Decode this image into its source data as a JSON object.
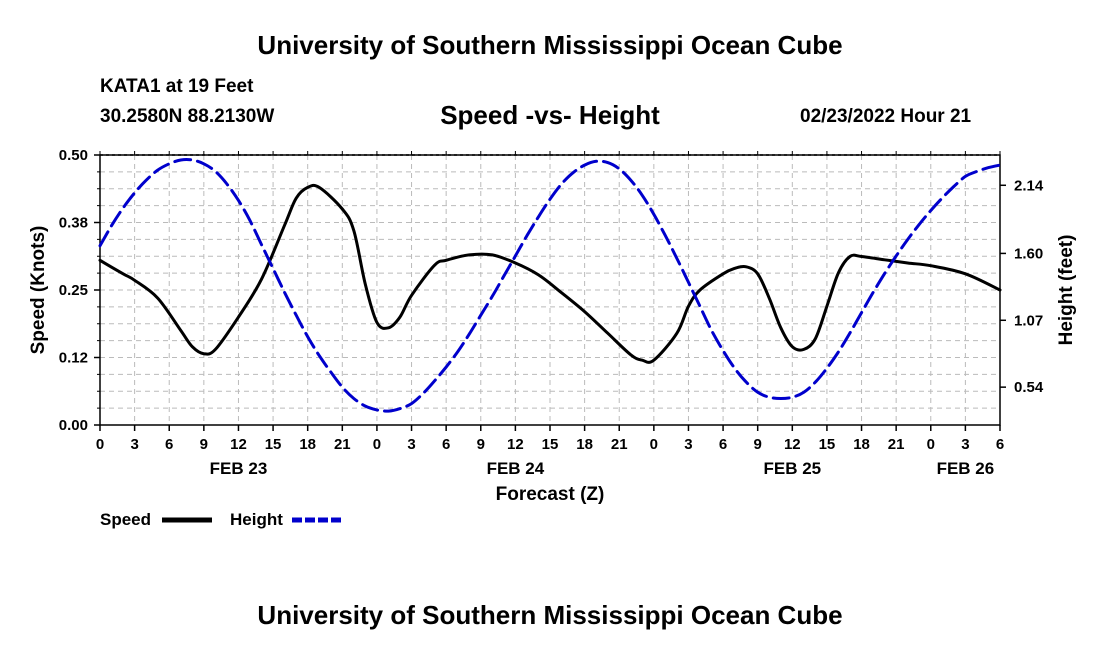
{
  "header": {
    "title": "University of Southern Mississippi Ocean Cube",
    "station": "KATA1 at 19 Feet",
    "coords": "30.2580N  88.2130W",
    "subtitle": "Speed -vs- Height",
    "timestamp": "02/23/2022 Hour 21"
  },
  "footer": {
    "title": "University of Southern Mississippi Ocean Cube"
  },
  "colors": {
    "speed": "#000000",
    "height": "#0000cc",
    "grid": "#bbbbbb"
  },
  "chart_data": {
    "type": "line",
    "title": "Speed -vs- Height",
    "xlabel": "Forecast (Z)",
    "ylabel": "Speed (Knots)",
    "y2label": "Height (feet)",
    "xlim": [
      0,
      78
    ],
    "ylim": [
      0,
      0.5
    ],
    "y2lim": [
      0.24,
      2.38
    ],
    "xticks": [
      0,
      3,
      6,
      9,
      12,
      15,
      18,
      21,
      24,
      27,
      30,
      33,
      36,
      39,
      42,
      45,
      48,
      51,
      54,
      57,
      60,
      63,
      66,
      69,
      72,
      75,
      78
    ],
    "xtick_labels": [
      "0",
      "3",
      "6",
      "9",
      "12",
      "15",
      "18",
      "21",
      "0",
      "3",
      "6",
      "9",
      "12",
      "15",
      "18",
      "21",
      "0",
      "3",
      "6",
      "9",
      "12",
      "15",
      "18",
      "21",
      "0",
      "3",
      "6"
    ],
    "yticks": [
      0,
      0.125,
      0.25,
      0.375,
      0.5
    ],
    "ytick_labels": [
      "0.00",
      "0.12",
      "0.25",
      "0.38",
      "0.50"
    ],
    "y2ticks": [
      0.54,
      1.07,
      1.6,
      2.14
    ],
    "y2tick_labels": [
      "0.54",
      "1.07",
      "1.60",
      "2.14"
    ],
    "date_labels": [
      {
        "label": "FEB 23",
        "x": 12
      },
      {
        "label": "FEB 24",
        "x": 36
      },
      {
        "label": "FEB 25",
        "x": 60
      },
      {
        "label": "FEB 26",
        "x": 75
      }
    ],
    "legend": [
      {
        "name": "Speed",
        "style": "solid"
      },
      {
        "name": "Height",
        "style": "dashed"
      }
    ],
    "series": [
      {
        "name": "Speed",
        "axis": "left",
        "x": [
          0,
          2,
          3,
          5,
          7,
          8,
          9,
          10,
          12,
          14,
          16,
          17,
          18,
          19,
          21,
          22,
          23,
          24,
          25,
          26,
          27,
          29,
          30,
          32,
          34,
          36,
          38,
          40,
          42,
          44,
          46,
          47,
          48,
          50,
          51,
          52,
          54,
          55,
          56,
          57,
          58,
          59,
          60,
          61,
          62,
          63,
          64,
          65,
          66,
          68,
          70,
          72,
          75,
          78
        ],
        "values": [
          0.305,
          0.28,
          0.268,
          0.235,
          0.175,
          0.145,
          0.132,
          0.14,
          0.2,
          0.27,
          0.37,
          0.42,
          0.44,
          0.44,
          0.4,
          0.36,
          0.26,
          0.19,
          0.18,
          0.2,
          0.24,
          0.296,
          0.305,
          0.315,
          0.315,
          0.3,
          0.278,
          0.245,
          0.21,
          0.17,
          0.13,
          0.12,
          0.12,
          0.17,
          0.22,
          0.25,
          0.28,
          0.29,
          0.293,
          0.28,
          0.235,
          0.18,
          0.145,
          0.14,
          0.16,
          0.22,
          0.282,
          0.312,
          0.312,
          0.306,
          0.3,
          0.295,
          0.28,
          0.25
        ]
      },
      {
        "name": "Height",
        "axis": "right",
        "x": [
          0,
          1,
          2,
          3,
          4,
          5,
          6,
          7,
          8,
          9,
          10,
          11,
          12,
          13,
          14,
          15,
          16,
          17,
          18,
          19,
          20,
          21,
          22,
          23,
          24,
          25,
          26,
          27,
          28,
          29,
          30,
          31,
          32,
          33,
          34,
          35,
          36,
          37,
          38,
          39,
          40,
          41,
          42,
          43,
          44,
          45,
          46,
          47,
          48,
          49,
          50,
          51,
          52,
          53,
          54,
          55,
          56,
          57,
          58,
          59,
          60,
          61,
          62,
          63,
          64,
          65,
          66,
          67,
          68,
          69,
          70,
          71,
          72,
          73,
          74,
          75,
          76,
          77,
          78
        ],
        "values": [
          1.66,
          1.82,
          1.96,
          2.08,
          2.18,
          2.26,
          2.31,
          2.34,
          2.34,
          2.31,
          2.25,
          2.15,
          2.02,
          1.86,
          1.67,
          1.48,
          1.29,
          1.11,
          0.94,
          0.79,
          0.66,
          0.54,
          0.45,
          0.39,
          0.36,
          0.35,
          0.37,
          0.41,
          0.49,
          0.59,
          0.7,
          0.82,
          0.96,
          1.11,
          1.26,
          1.42,
          1.58,
          1.74,
          1.89,
          2.03,
          2.15,
          2.24,
          2.3,
          2.33,
          2.32,
          2.27,
          2.18,
          2.06,
          1.91,
          1.74,
          1.56,
          1.37,
          1.18,
          0.99,
          0.83,
          0.69,
          0.58,
          0.5,
          0.46,
          0.45,
          0.46,
          0.5,
          0.58,
          0.69,
          0.82,
          0.97,
          1.13,
          1.29,
          1.44,
          1.58,
          1.71,
          1.83,
          1.94,
          2.04,
          2.13,
          2.21,
          2.25,
          2.28,
          2.3
        ]
      }
    ]
  }
}
